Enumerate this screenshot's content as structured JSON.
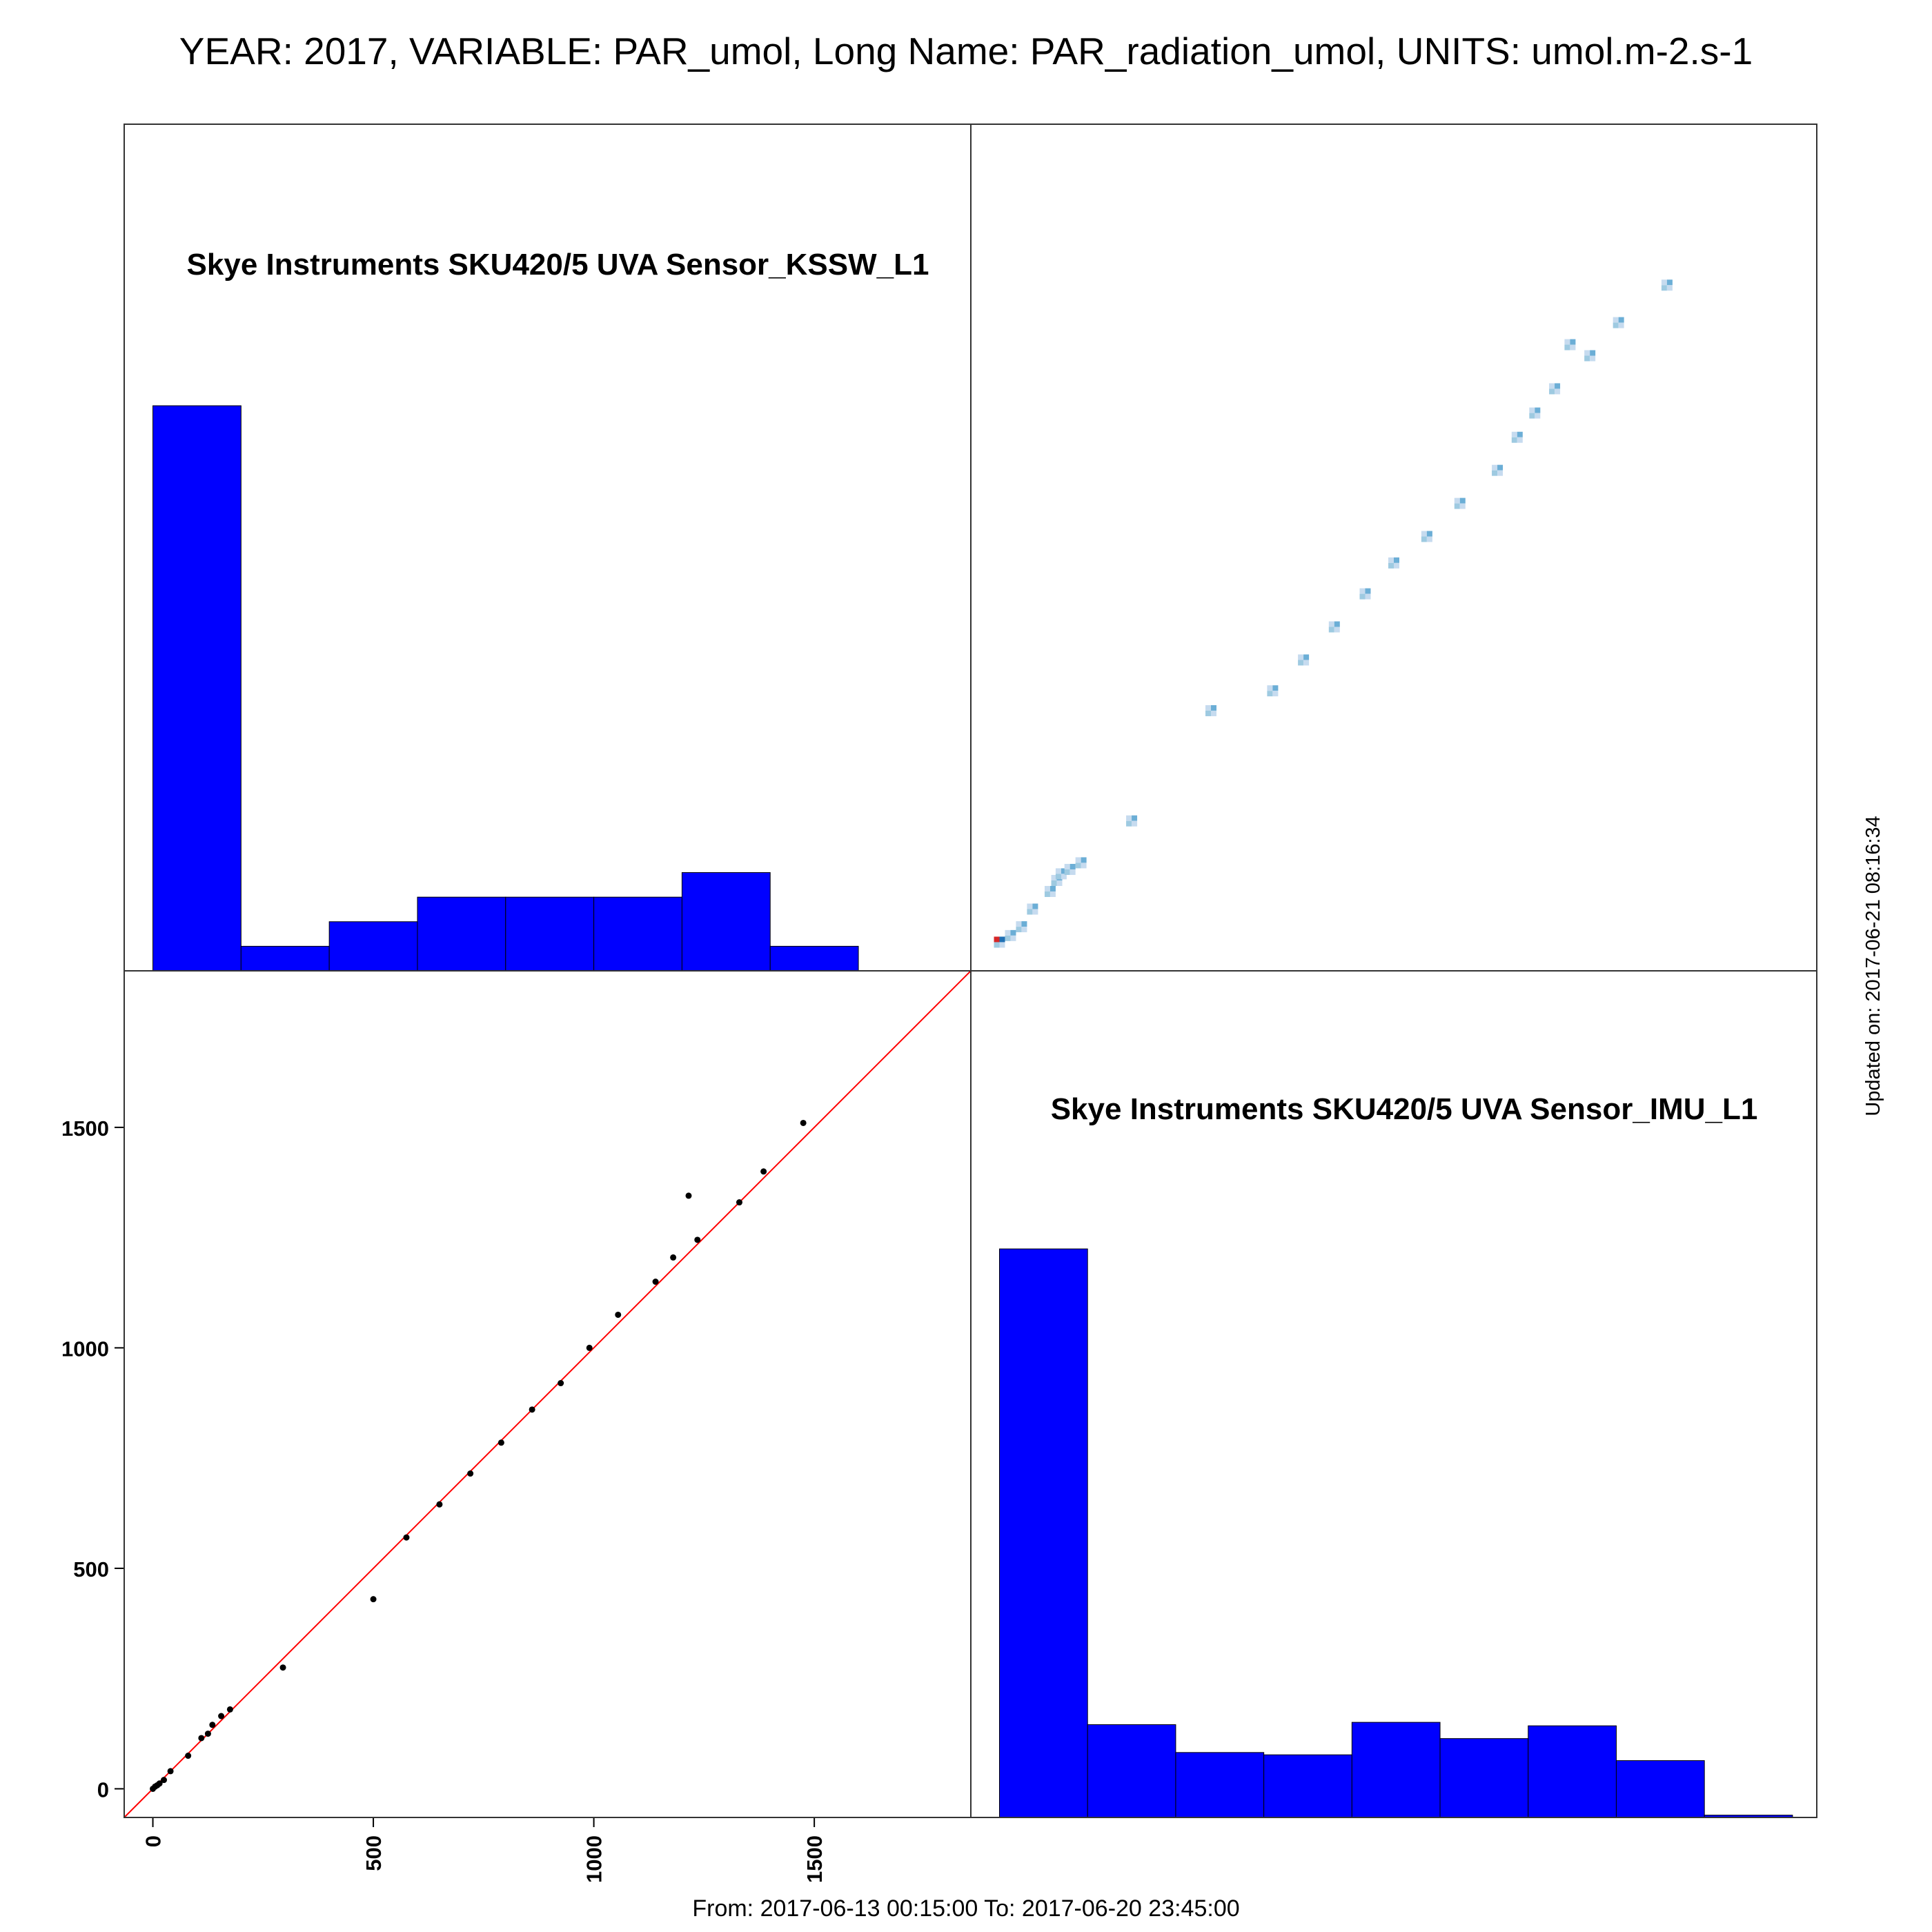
{
  "header": {
    "title": "YEAR: 2017, VARIABLE: PAR_umol, Long Name: PAR_radiation_umol, UNITS: umol.m-2.s-1",
    "footer": "From: 2017-06-13 00:15:00 To: 2017-06-20 23:45:00",
    "updated": "Updated on: 2017-06-21 08:16:34"
  },
  "chart_data": [
    {
      "type": "bar",
      "panel": "top-left",
      "title": "Skye Instruments SKU420/5 UVA Sensor_KSSW_L1",
      "bin_edges": [
        0,
        200,
        400,
        600,
        800,
        1000,
        1200,
        1400,
        1600
      ],
      "values": [
        23,
        1,
        2,
        3,
        3,
        3,
        4,
        1
      ],
      "color": "#0000ff",
      "xlim": [
        -65,
        1855
      ],
      "ylim": [
        0,
        30
      ]
    },
    {
      "type": "heatmap",
      "panel": "top-right",
      "description_points": [
        [
          0,
          0
        ],
        [
          25,
          15
        ],
        [
          50,
          35
        ],
        [
          75,
          75
        ],
        [
          115,
          115
        ],
        [
          130,
          140
        ],
        [
          140,
          155
        ],
        [
          160,
          165
        ],
        [
          185,
          180
        ],
        [
          300,
          275
        ],
        [
          480,
          525
        ],
        [
          620,
          570
        ],
        [
          690,
          640
        ],
        [
          760,
          715
        ],
        [
          830,
          790
        ],
        [
          895,
          860
        ],
        [
          970,
          920
        ],
        [
          1045,
          995
        ],
        [
          1130,
          1070
        ],
        [
          1175,
          1145
        ],
        [
          1215,
          1200
        ],
        [
          1260,
          1255
        ],
        [
          1340,
          1330
        ],
        [
          1295,
          1355
        ],
        [
          1405,
          1405
        ],
        [
          1515,
          1490
        ]
      ],
      "xlim": [
        -65,
        1855
      ],
      "ylim": [
        -65,
        1855
      ],
      "colors": [
        "#c6dbef",
        "#9ecae1",
        "#6baed6",
        "#4292c6",
        "#2171b5",
        "#d62728"
      ]
    },
    {
      "type": "scatter",
      "panel": "bottom-left",
      "x": [
        0,
        5,
        10,
        15,
        25,
        40,
        80,
        110,
        125,
        135,
        155,
        175,
        295,
        500,
        575,
        650,
        720,
        790,
        860,
        925,
        990,
        1055,
        1140,
        1180,
        1215,
        1235,
        1330,
        1385,
        1475
      ],
      "y": [
        0,
        5,
        8,
        12,
        20,
        40,
        75,
        115,
        125,
        145,
        165,
        180,
        275,
        430,
        570,
        645,
        715,
        785,
        860,
        920,
        1000,
        1075,
        1150,
        1205,
        1345,
        1245,
        1330,
        1400,
        1510
      ],
      "xlim": [
        -65,
        1855
      ],
      "ylim": [
        -65,
        1855
      ],
      "xticks": [
        "0",
        "500",
        "1000",
        "1500"
      ],
      "xtick_values": [
        0,
        500,
        1000,
        1500
      ],
      "yticks": [
        "0",
        "500",
        "1000",
        "1500"
      ],
      "ytick_values": [
        0,
        500,
        1000,
        1500
      ],
      "reference_line": "y = x",
      "line_color": "#ff0000",
      "point_color": "#000000"
    },
    {
      "type": "bar",
      "panel": "bottom-right",
      "title": "Skye Instruments SKU420/5 UVA Sensor_IMU_L1",
      "bin_edges": [
        0,
        200,
        400,
        600,
        800,
        1000,
        1200,
        1400,
        1600,
        1800
      ],
      "values": [
        24.5,
        4,
        2.8,
        2.7,
        4.1,
        3.4,
        3.95,
        2.45,
        0.1
      ],
      "color": "#0000ff",
      "xlim": [
        -65,
        1855
      ],
      "ylim": [
        0,
        28
      ]
    }
  ]
}
